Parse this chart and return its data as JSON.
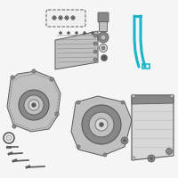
{
  "bg_color": "#f5f5f5",
  "hl": "#1ab5c8",
  "gray_dark": "#5a5a5a",
  "gray_med": "#888888",
  "gray_light": "#c0c0c0",
  "gray_vlight": "#d8d8d8",
  "white": "#f0f0f0",
  "fig_size": [
    2.0,
    2.0
  ],
  "dpi": 100
}
